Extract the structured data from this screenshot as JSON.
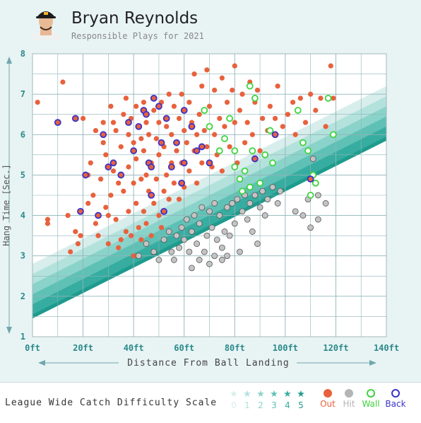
{
  "header": {
    "player_name": "Bryan Reynolds",
    "subtitle": "Responsible Plays for 2021"
  },
  "legend": {
    "scale_label": "League Wide Catch Difficulty Scale",
    "difficulty": [
      {
        "num": "0",
        "color": "#d8eeec"
      },
      {
        "num": "1",
        "color": "#b3e2dc"
      },
      {
        "num": "2",
        "color": "#8ad3ca"
      },
      {
        "num": "3",
        "color": "#5fc1b5"
      },
      {
        "num": "4",
        "color": "#36ada0"
      },
      {
        "num": "5",
        "color": "#1f9b8d"
      }
    ],
    "types": [
      {
        "label": "Out",
        "color": "#e8613d"
      },
      {
        "label": "Hit",
        "color": "#b4b4b4"
      },
      {
        "label": "Wall",
        "color": "#3dd43d"
      },
      {
        "label": "Back",
        "color": "#3a32c8"
      }
    ]
  },
  "chart_data": {
    "type": "scatter",
    "xlabel": "Distance From Ball Landing",
    "ylabel": "Hang Time [Sec.]",
    "xlim": [
      0,
      140
    ],
    "ylim": [
      1,
      8
    ],
    "x_ticks": [
      "0ft",
      "20ft",
      "40ft",
      "60ft",
      "80ft",
      "100ft",
      "120ft",
      "140ft"
    ],
    "y_ticks": [
      "1",
      "2",
      "3",
      "4",
      "5",
      "6",
      "7",
      "8"
    ],
    "grid": true,
    "series": [
      {
        "name": "Out",
        "color": "#e8613d",
        "style": "filled",
        "points": [
          [
            2,
            6.8
          ],
          [
            6,
            3.8
          ],
          [
            6,
            3.9
          ],
          [
            12,
            7.3
          ],
          [
            14,
            4.0
          ],
          [
            15,
            3.1
          ],
          [
            17,
            3.6
          ],
          [
            18,
            3.3
          ],
          [
            19,
            3.5
          ],
          [
            20,
            6.4
          ],
          [
            22,
            5.0
          ],
          [
            22,
            4.3
          ],
          [
            23,
            5.3
          ],
          [
            24,
            4.5
          ],
          [
            25,
            6.1
          ],
          [
            25,
            3.8
          ],
          [
            26,
            3.5
          ],
          [
            27,
            4.9
          ],
          [
            28,
            6.3
          ],
          [
            28,
            5.8
          ],
          [
            29,
            4.2
          ],
          [
            29,
            5.5
          ],
          [
            30,
            4.0
          ],
          [
            30,
            3.3
          ],
          [
            31,
            6.7
          ],
          [
            31,
            4.5
          ],
          [
            32,
            6.3
          ],
          [
            32,
            5.1
          ],
          [
            33,
            6.1
          ],
          [
            33,
            3.9
          ],
          [
            34,
            4.8
          ],
          [
            34,
            3.2
          ],
          [
            35,
            5.7
          ],
          [
            35,
            3.4
          ],
          [
            36,
            6.5
          ],
          [
            36,
            4.6
          ],
          [
            37,
            6.9
          ],
          [
            37,
            3.6
          ],
          [
            38,
            6.0
          ],
          [
            38,
            5.2
          ],
          [
            38,
            4.1
          ],
          [
            39,
            6.4
          ],
          [
            39,
            3.5
          ],
          [
            40,
            5.8
          ],
          [
            40,
            4.8
          ],
          [
            40,
            3.0
          ],
          [
            41,
            6.7
          ],
          [
            41,
            5.4
          ],
          [
            41,
            4.3
          ],
          [
            42,
            6.2
          ],
          [
            42,
            3.7
          ],
          [
            43,
            5.9
          ],
          [
            43,
            4.9
          ],
          [
            43,
            3.4
          ],
          [
            44,
            6.8
          ],
          [
            44,
            5.6
          ],
          [
            44,
            4.1
          ],
          [
            45,
            6.3
          ],
          [
            45,
            5.0
          ],
          [
            45,
            3.8
          ],
          [
            46,
            6.0
          ],
          [
            46,
            4.6
          ],
          [
            47,
            5.3
          ],
          [
            47,
            3.5
          ],
          [
            48,
            6.6
          ],
          [
            48,
            4.3
          ],
          [
            49,
            5.9
          ],
          [
            49,
            4.9
          ],
          [
            50,
            6.3
          ],
          [
            50,
            5.5
          ],
          [
            50,
            4.0
          ],
          [
            51,
            6.8
          ],
          [
            51,
            3.7
          ],
          [
            52,
            5.7
          ],
          [
            52,
            4.6
          ],
          [
            53,
            6.2
          ],
          [
            53,
            5.0
          ],
          [
            54,
            7.0
          ],
          [
            54,
            4.4
          ],
          [
            55,
            6.0
          ],
          [
            55,
            5.3
          ],
          [
            56,
            6.7
          ],
          [
            56,
            4.8
          ],
          [
            57,
            5.6
          ],
          [
            58,
            6.4
          ],
          [
            58,
            4.4
          ],
          [
            59,
            7.0
          ],
          [
            59,
            5.3
          ],
          [
            60,
            6.1
          ],
          [
            60,
            4.7
          ],
          [
            61,
            5.8
          ],
          [
            62,
            6.8
          ],
          [
            62,
            5.1
          ],
          [
            63,
            6.3
          ],
          [
            64,
            7.5
          ],
          [
            64,
            5.6
          ],
          [
            65,
            6.0
          ],
          [
            65,
            4.8
          ],
          [
            66,
            6.5
          ],
          [
            67,
            5.3
          ],
          [
            67,
            7.2
          ],
          [
            68,
            6.1
          ],
          [
            69,
            7.6
          ],
          [
            69,
            5.7
          ],
          [
            70,
            6.7
          ],
          [
            71,
            5.2
          ],
          [
            72,
            6.0
          ],
          [
            72,
            7.1
          ],
          [
            73,
            5.5
          ],
          [
            74,
            6.4
          ],
          [
            75,
            7.4
          ],
          [
            75,
            5.1
          ],
          [
            76,
            6.2
          ],
          [
            77,
            6.8
          ],
          [
            78,
            5.7
          ],
          [
            79,
            7.1
          ],
          [
            80,
            6.3
          ],
          [
            80,
            7.7
          ],
          [
            81,
            5.3
          ],
          [
            82,
            6.6
          ],
          [
            83,
            7.0
          ],
          [
            84,
            5.8
          ],
          [
            85,
            6.3
          ],
          [
            86,
            7.3
          ],
          [
            87,
            6.0
          ],
          [
            88,
            6.8
          ],
          [
            89,
            7.1
          ],
          [
            90,
            5.6
          ],
          [
            91,
            6.4
          ],
          [
            93,
            6.1
          ],
          [
            94,
            6.7
          ],
          [
            96,
            6.4
          ],
          [
            97,
            7.2
          ],
          [
            99,
            6.2
          ],
          [
            101,
            6.5
          ],
          [
            103,
            6.8
          ],
          [
            104,
            6.0
          ],
          [
            106,
            6.9
          ],
          [
            108,
            6.3
          ],
          [
            110,
            7.0
          ],
          [
            112,
            6.6
          ],
          [
            114,
            6.9
          ],
          [
            116,
            6.2
          ],
          [
            118,
            7.7
          ],
          [
            119,
            6.9
          ]
        ]
      },
      {
        "name": "Hit",
        "color": "#c4c4c4",
        "style": "filled-outline",
        "points": [
          [
            42,
            3.0
          ],
          [
            45,
            3.3
          ],
          [
            48,
            3.1
          ],
          [
            50,
            2.9
          ],
          [
            52,
            3.4
          ],
          [
            54,
            3.6
          ],
          [
            55,
            3.1
          ],
          [
            56,
            2.9
          ],
          [
            57,
            3.5
          ],
          [
            58,
            3.2
          ],
          [
            59,
            3.7
          ],
          [
            60,
            3.4
          ],
          [
            61,
            3.9
          ],
          [
            62,
            3.1
          ],
          [
            63,
            2.7
          ],
          [
            63,
            3.6
          ],
          [
            64,
            4.0
          ],
          [
            65,
            3.3
          ],
          [
            66,
            2.9
          ],
          [
            66,
            3.8
          ],
          [
            67,
            4.2
          ],
          [
            68,
            3.1
          ],
          [
            69,
            3.5
          ],
          [
            70,
            4.1
          ],
          [
            70,
            2.8
          ],
          [
            71,
            3.7
          ],
          [
            72,
            4.3
          ],
          [
            72,
            3.0
          ],
          [
            73,
            3.4
          ],
          [
            74,
            4.0
          ],
          [
            75,
            3.2
          ],
          [
            75,
            2.9
          ],
          [
            76,
            3.6
          ],
          [
            77,
            4.2
          ],
          [
            77,
            3.0
          ],
          [
            78,
            3.5
          ],
          [
            79,
            4.3
          ],
          [
            80,
            3.8
          ],
          [
            81,
            4.4
          ],
          [
            82,
            3.1
          ],
          [
            83,
            4.1
          ],
          [
            84,
            4.5
          ],
          [
            85,
            3.9
          ],
          [
            86,
            4.3
          ],
          [
            87,
            3.6
          ],
          [
            88,
            4.5
          ],
          [
            89,
            3.3
          ],
          [
            90,
            4.2
          ],
          [
            91,
            4.6
          ],
          [
            92,
            4.0
          ],
          [
            93,
            4.4
          ],
          [
            95,
            4.7
          ],
          [
            97,
            4.3
          ],
          [
            98,
            4.6
          ],
          [
            104,
            4.1
          ],
          [
            107,
            4.0
          ],
          [
            109,
            4.4
          ],
          [
            110,
            3.7
          ],
          [
            111,
            5.4
          ],
          [
            113,
            3.9
          ],
          [
            113,
            4.5
          ],
          [
            116,
            4.3
          ]
        ]
      },
      {
        "name": "Wall",
        "color": "#3dd43d",
        "style": "ring",
        "points": [
          [
            68,
            6.6
          ],
          [
            70,
            6.2
          ],
          [
            74,
            5.6
          ],
          [
            76,
            5.9
          ],
          [
            78,
            6.4
          ],
          [
            80,
            5.6
          ],
          [
            80,
            5.2
          ],
          [
            82,
            4.9
          ],
          [
            83,
            4.6
          ],
          [
            84,
            5.1
          ],
          [
            86,
            7.2
          ],
          [
            86,
            4.7
          ],
          [
            87,
            5.6
          ],
          [
            88,
            6.9
          ],
          [
            90,
            4.8
          ],
          [
            92,
            5.5
          ],
          [
            94,
            6.1
          ],
          [
            95,
            5.3
          ],
          [
            105,
            6.6
          ],
          [
            107,
            5.8
          ],
          [
            109,
            5.6
          ],
          [
            110,
            4.5
          ],
          [
            111,
            5.0
          ],
          [
            112,
            4.8
          ],
          [
            117,
            6.9
          ],
          [
            119,
            6.0
          ]
        ]
      },
      {
        "name": "Back",
        "color": "#3a32c8",
        "style": "blue-ring",
        "points": [
          [
            10,
            6.3
          ],
          [
            17,
            6.4
          ],
          [
            19,
            4.1
          ],
          [
            21,
            5.0
          ],
          [
            26,
            4.0
          ],
          [
            28,
            6.0
          ],
          [
            30,
            5.2
          ],
          [
            32,
            5.3
          ],
          [
            35,
            5.0
          ],
          [
            38,
            6.3
          ],
          [
            40,
            5.6
          ],
          [
            42,
            6.2
          ],
          [
            44,
            6.6
          ],
          [
            45,
            6.5
          ],
          [
            46,
            5.3
          ],
          [
            47,
            5.2
          ],
          [
            47,
            4.5
          ],
          [
            48,
            6.9
          ],
          [
            50,
            6.7
          ],
          [
            51,
            5.8
          ],
          [
            52,
            4.1
          ],
          [
            53,
            6.4
          ],
          [
            55,
            5.2
          ],
          [
            57,
            5.8
          ],
          [
            59,
            4.8
          ],
          [
            60,
            6.6
          ],
          [
            60,
            5.3
          ],
          [
            63,
            6.2
          ],
          [
            65,
            5.6
          ],
          [
            67,
            5.7
          ],
          [
            70,
            5.3
          ],
          [
            88,
            5.4
          ],
          [
            96,
            6.0
          ],
          [
            110,
            4.9
          ]
        ]
      }
    ]
  }
}
